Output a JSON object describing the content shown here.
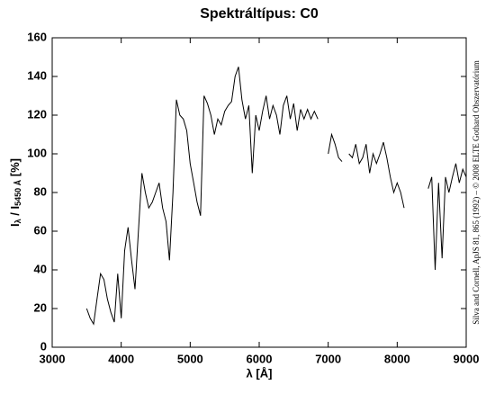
{
  "chart_data": {
    "type": "line",
    "title": "Spektráltípus: C0",
    "xlabel": "λ [Å]",
    "ylabel": {
      "main": "I",
      "sub1": "λ",
      "mid": " / I",
      "sub2": "5450 Å",
      "end": " [%]"
    },
    "credit": "Silva and Cornell, ApJS 81, 865 (1992) – © 2008 ELTE Gothard Obszervatórium",
    "xlim": [
      3000,
      9000
    ],
    "xticks": [
      3000,
      4000,
      5000,
      6000,
      7000,
      8000,
      9000
    ],
    "ylim": [
      0,
      160
    ],
    "yticks": [
      0,
      20,
      40,
      60,
      80,
      100,
      120,
      140,
      160
    ],
    "series": [
      {
        "color": "#000000",
        "x": [
          3500,
          3550,
          3600,
          3650,
          3700,
          3750,
          3800,
          3850,
          3900,
          3950,
          4000,
          4050,
          4100,
          4150,
          4200,
          4250,
          4300,
          4350,
          4400,
          4450,
          4500,
          4550,
          4600,
          4650,
          4700,
          4750,
          4800,
          4850,
          4900,
          4950,
          5000,
          5050,
          5100,
          5150,
          5200,
          5250,
          5300,
          5350,
          5400,
          5450,
          5500,
          5550,
          5600,
          5650,
          5700,
          5750,
          5800,
          5850,
          5900,
          5950,
          6000,
          6050,
          6100,
          6150,
          6200,
          6250,
          6300,
          6350,
          6400,
          6450,
          6500,
          6550,
          6600,
          6650,
          6700,
          6750,
          6800,
          6850,
          6900,
          6950,
          7000,
          7050,
          7100,
          7150,
          7200,
          7250,
          7300,
          7350,
          7400,
          7450,
          7500,
          7550,
          7600,
          7650,
          7700,
          7750,
          7800,
          7850,
          7900,
          7950,
          8000,
          8050,
          8100,
          8150,
          8200,
          8250,
          8300,
          8350,
          8400,
          8450,
          8500,
          8550,
          8600,
          8650,
          8700,
          8750,
          8800,
          8850,
          8900,
          8950,
          9000
        ],
        "values": [
          20,
          15,
          12,
          25,
          38,
          35,
          25,
          18,
          13,
          38,
          15,
          50,
          62,
          45,
          30,
          60,
          90,
          80,
          72,
          75,
          80,
          85,
          72,
          65,
          45,
          80,
          128,
          120,
          118,
          112,
          95,
          85,
          75,
          68,
          130,
          126,
          120,
          110,
          118,
          115,
          122,
          125,
          127,
          140,
          145,
          128,
          118,
          125,
          90,
          120,
          112,
          122,
          130,
          118,
          125,
          120,
          110,
          125,
          130,
          118,
          126,
          112,
          123,
          118,
          123,
          118,
          122,
          118,
          null,
          null,
          100,
          110,
          105,
          98,
          96,
          null,
          100,
          98,
          105,
          95,
          98,
          105,
          90,
          100,
          95,
          100,
          106,
          98,
          88,
          80,
          85,
          80,
          72,
          null,
          null,
          null,
          null,
          null,
          null,
          82,
          88,
          40,
          85,
          46,
          88,
          80,
          88,
          95,
          85,
          92,
          88
        ]
      }
    ]
  }
}
